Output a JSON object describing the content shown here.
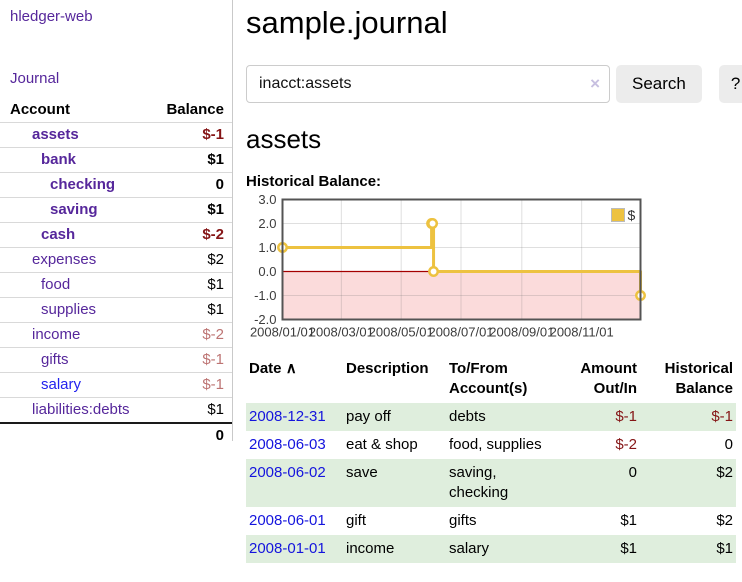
{
  "app": {
    "brand": "hledger-web"
  },
  "sidebar": {
    "journal_link": "Journal",
    "account_header": "Account",
    "balance_header": "Balance",
    "accounts": [
      {
        "name": "assets",
        "balance": "$-1"
      },
      {
        "name": "bank",
        "balance": "$1"
      },
      {
        "name": "checking",
        "balance": "0"
      },
      {
        "name": "saving",
        "balance": "$1"
      },
      {
        "name": "cash",
        "balance": "$-2"
      },
      {
        "name": "expenses",
        "balance": "$2"
      },
      {
        "name": "food",
        "balance": "$1"
      },
      {
        "name": "supplies",
        "balance": "$1"
      },
      {
        "name": "income",
        "balance": "$-2"
      },
      {
        "name": "gifts",
        "balance": "$-1"
      },
      {
        "name": "salary",
        "balance": "$-1"
      },
      {
        "name": "liabilities:debts",
        "balance": "$1"
      }
    ],
    "total": "0"
  },
  "header": {
    "title": "sample.journal"
  },
  "search": {
    "value": "inacct:assets",
    "clear_icon": "×",
    "search_button": "Search",
    "help_button": "?"
  },
  "account_view": {
    "heading": "assets",
    "chart_title": "Historical Balance:"
  },
  "chart_data": {
    "type": "line",
    "title": "Historical Balance",
    "series": [
      {
        "name": "$",
        "color": "#edc240",
        "step": true,
        "points": [
          [
            "2008-01-01",
            1
          ],
          [
            "2008-06-01",
            2
          ],
          [
            "2008-06-02",
            2
          ],
          [
            "2008-06-03",
            0
          ],
          [
            "2008-12-31",
            -1
          ]
        ]
      }
    ],
    "xrange": [
      "2008-01-01",
      "2008-12-31"
    ],
    "ylim": [
      -2,
      3
    ],
    "ytick_labels": [
      "3.0",
      "2.0",
      "1.0",
      "0.0",
      "-1.0",
      "-2.0"
    ],
    "ytick_values": [
      3,
      2,
      1,
      0,
      -1,
      -2
    ],
    "xticks": [
      {
        "label": "2008/01/01",
        "date": "2008-01-01"
      },
      {
        "label": "2008/03/01",
        "date": "2008-03-01"
      },
      {
        "label": "2008/05/01",
        "date": "2008-05-01"
      },
      {
        "label": "2008/07/01",
        "date": "2008-07-01"
      },
      {
        "label": "2008/09/01",
        "date": "2008-09-01"
      },
      {
        "label": "2008/11/01",
        "date": "2008-11-01"
      }
    ],
    "legend": {
      "label": "$",
      "position": "top-right"
    },
    "grid": true,
    "colors": {
      "negative_region": "#fbdbdb",
      "zero_line": "#a40000",
      "border": "#545454"
    }
  },
  "register": {
    "columns": {
      "date": "Date",
      "sort_indicator": "∧",
      "description": "Description",
      "accounts": "To/From Account(s)",
      "amount": "Amount Out/In",
      "balance": "Historical Balance"
    },
    "rows": [
      {
        "date": "2008-12-31",
        "description": "pay off",
        "accounts": "debts",
        "amount": "$-1",
        "balance": "$-1"
      },
      {
        "date": "2008-06-03",
        "description": "eat & shop",
        "accounts": "food, supplies",
        "amount": "$-2",
        "balance": "0"
      },
      {
        "date": "2008-06-02",
        "description": "save",
        "accounts": "saving, checking",
        "amount": "0",
        "balance": "$2"
      },
      {
        "date": "2008-06-01",
        "description": "gift",
        "accounts": "gifts",
        "amount": "$1",
        "balance": "$2"
      },
      {
        "date": "2008-01-01",
        "description": "income",
        "accounts": "salary",
        "amount": "$1",
        "balance": "$1"
      }
    ]
  }
}
